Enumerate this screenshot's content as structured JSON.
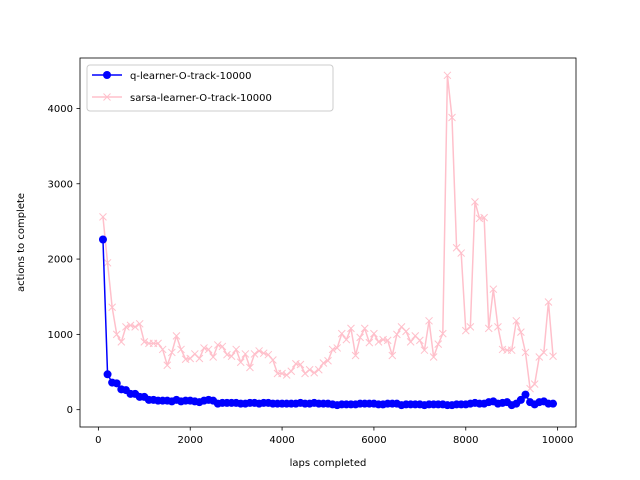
{
  "chart_data": {
    "type": "line",
    "xlabel": "laps completed",
    "ylabel": "actions to complete",
    "xlim": [
      -400,
      10400
    ],
    "ylim": [
      -230,
      4670
    ],
    "xticks": [
      0,
      2000,
      4000,
      6000,
      8000,
      10000
    ],
    "yticks": [
      0,
      1000,
      2000,
      3000,
      4000
    ],
    "grid": false,
    "legend_position": "upper left",
    "series": [
      {
        "name": "q-learner-O-track-10000",
        "color": "#0000ff",
        "marker": "circle",
        "x": [
          100,
          200,
          300,
          400,
          500,
          600,
          700,
          800,
          900,
          1000,
          1100,
          1200,
          1300,
          1400,
          1500,
          1600,
          1700,
          1800,
          1900,
          2000,
          2100,
          2200,
          2300,
          2400,
          2500,
          2600,
          2700,
          2800,
          2900,
          3000,
          3100,
          3200,
          3300,
          3400,
          3500,
          3600,
          3700,
          3800,
          3900,
          4000,
          4100,
          4200,
          4300,
          4400,
          4500,
          4600,
          4700,
          4800,
          4900,
          5000,
          5100,
          5200,
          5300,
          5400,
          5500,
          5600,
          5700,
          5800,
          5900,
          6000,
          6100,
          6200,
          6300,
          6400,
          6500,
          6600,
          6700,
          6800,
          6900,
          7000,
          7100,
          7200,
          7300,
          7400,
          7500,
          7600,
          7700,
          7800,
          7900,
          8000,
          8100,
          8200,
          8300,
          8400,
          8500,
          8600,
          8700,
          8800,
          8900,
          9000,
          9100,
          9200,
          9300,
          9400,
          9500,
          9600,
          9700,
          9800,
          9900
        ],
        "y": [
          2260,
          470,
          360,
          350,
          270,
          260,
          210,
          210,
          170,
          170,
          130,
          130,
          120,
          120,
          120,
          110,
          130,
          110,
          120,
          120,
          110,
          100,
          120,
          130,
          120,
          80,
          90,
          90,
          90,
          90,
          80,
          80,
          90,
          90,
          80,
          90,
          90,
          80,
          80,
          80,
          80,
          80,
          80,
          90,
          80,
          80,
          90,
          80,
          80,
          80,
          70,
          60,
          70,
          70,
          70,
          70,
          80,
          80,
          80,
          80,
          70,
          70,
          80,
          80,
          80,
          60,
          70,
          70,
          70,
          70,
          60,
          70,
          70,
          70,
          70,
          60,
          60,
          70,
          70,
          70,
          80,
          90,
          80,
          80,
          100,
          110,
          80,
          90,
          100,
          60,
          80,
          130,
          200,
          100,
          70,
          100,
          110,
          80,
          80
        ]
      },
      {
        "name": "sarsa-learner-O-track-10000",
        "color": "#ffc0cb",
        "marker": "x",
        "x": [
          100,
          200,
          300,
          400,
          500,
          600,
          700,
          800,
          900,
          1000,
          1100,
          1200,
          1300,
          1400,
          1500,
          1600,
          1700,
          1800,
          1900,
          2000,
          2100,
          2200,
          2300,
          2400,
          2500,
          2600,
          2700,
          2800,
          2900,
          3000,
          3100,
          3200,
          3300,
          3400,
          3500,
          3600,
          3700,
          3800,
          3900,
          4000,
          4100,
          4200,
          4300,
          4400,
          4500,
          4600,
          4700,
          4800,
          4900,
          5000,
          5100,
          5200,
          5300,
          5400,
          5500,
          5600,
          5700,
          5800,
          5900,
          6000,
          6100,
          6200,
          6300,
          6400,
          6500,
          6600,
          6700,
          6800,
          6900,
          7000,
          7100,
          7200,
          7300,
          7400,
          7500,
          7600,
          7700,
          7800,
          7900,
          8000,
          8100,
          8200,
          8300,
          8400,
          8500,
          8600,
          8700,
          8800,
          8900,
          9000,
          9100,
          9200,
          9300,
          9400,
          9500,
          9600,
          9700,
          9800,
          9900
        ],
        "y": [
          2560,
          1950,
          1360,
          1000,
          900,
          1100,
          1120,
          1100,
          1140,
          900,
          880,
          880,
          880,
          800,
          590,
          760,
          980,
          800,
          670,
          680,
          740,
          680,
          820,
          800,
          700,
          860,
          840,
          730,
          710,
          800,
          630,
          740,
          560,
          740,
          780,
          750,
          730,
          660,
          480,
          480,
          460,
          510,
          610,
          600,
          480,
          530,
          490,
          530,
          620,
          650,
          800,
          820,
          1010,
          930,
          1080,
          720,
          960,
          1080,
          890,
          1010,
          900,
          930,
          920,
          720,
          1000,
          1100,
          1040,
          900,
          980,
          920,
          790,
          1180,
          700,
          870,
          1010,
          4440,
          3880,
          2150,
          2080,
          1050,
          1100,
          2760,
          2540,
          2550,
          1080,
          1600,
          1100,
          800,
          790,
          790,
          1180,
          1030,
          760,
          280,
          340,
          700,
          760,
          1430,
          710
        ]
      }
    ]
  }
}
